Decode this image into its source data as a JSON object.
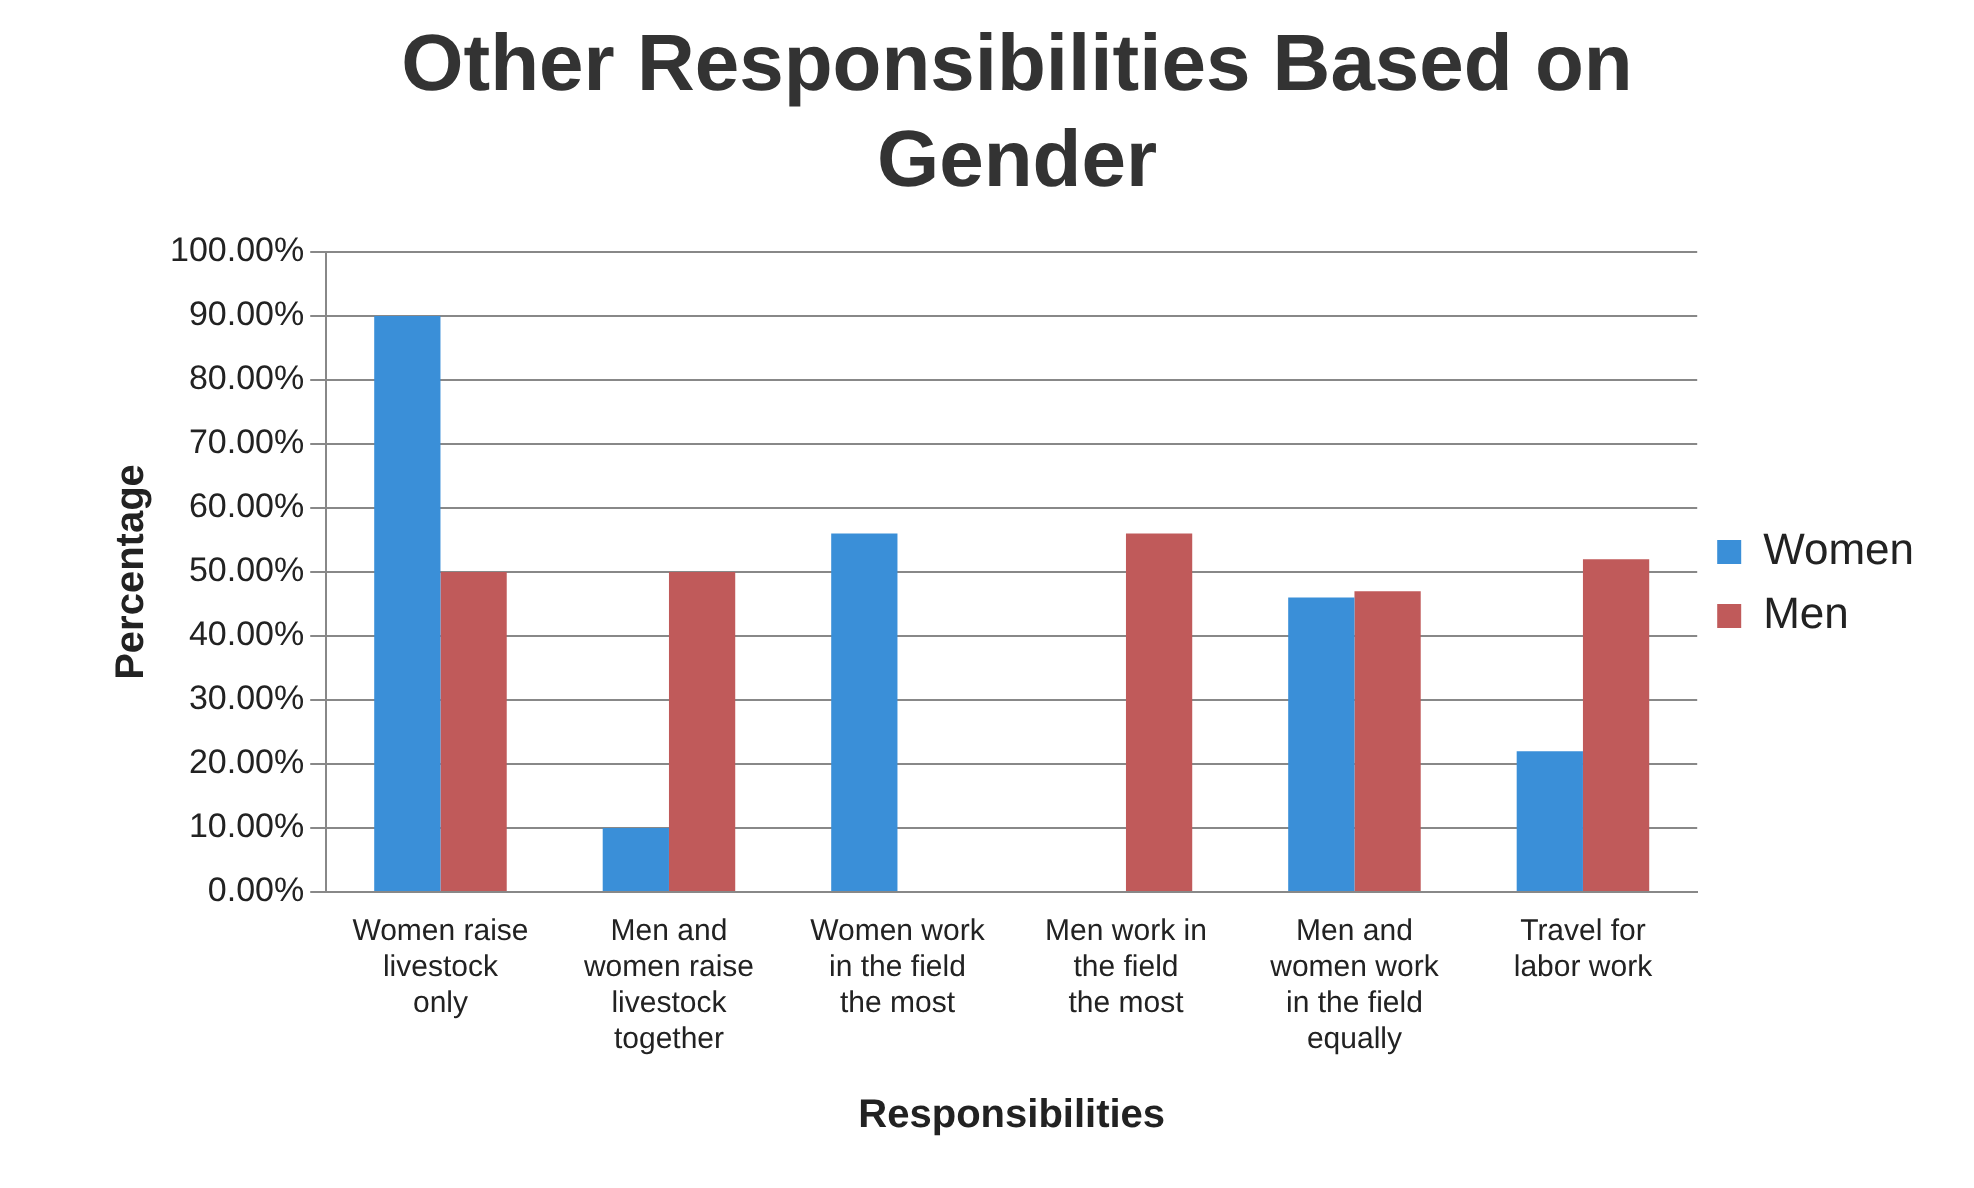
{
  "chart_data": {
    "type": "bar",
    "title": "Other Responsibilities Based on Gender",
    "xlabel": "Responsibilities",
    "ylabel": "Percentage",
    "categories": [
      "Women raise livestock only",
      "Men and women raise livestock together",
      "Women work in the field the most",
      "Men work in the field the most",
      "Men and women work in the field equally",
      "Travel for labor work"
    ],
    "series": [
      {
        "name": "Women",
        "color": "#3a8fd8",
        "values": [
          90,
          10,
          56,
          0,
          46,
          22
        ]
      },
      {
        "name": "Men",
        "color": "#c05a5a",
        "values": [
          50,
          50,
          0,
          56,
          47,
          52
        ]
      }
    ],
    "ylim": [
      0,
      100
    ],
    "yticks": [
      {
        "value": 0,
        "label": "0.00%"
      },
      {
        "value": 10,
        "label": "10.00%"
      },
      {
        "value": 20,
        "label": "20.00%"
      },
      {
        "value": 30,
        "label": "30.00%"
      },
      {
        "value": 40,
        "label": "40.00%"
      },
      {
        "value": 50,
        "label": "50.00%"
      },
      {
        "value": 60,
        "label": "60.00%"
      },
      {
        "value": 70,
        "label": "70.00%"
      },
      {
        "value": 80,
        "label": "80.00%"
      },
      {
        "value": 90,
        "label": "90.00%"
      },
      {
        "value": 100,
        "label": "100.00%"
      }
    ],
    "grid": "y",
    "legend": "right"
  }
}
